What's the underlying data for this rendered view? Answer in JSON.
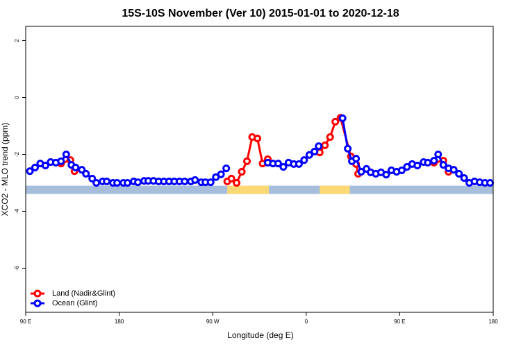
{
  "chart_data": {
    "type": "line",
    "title": "15S-10S November (Ver 10)   2015-01-01 to 2020-12-18",
    "xlabel": "Longitude (deg E)",
    "ylabel": "XCO2 - MLO trend (ppm)",
    "xlim": [
      90,
      540
    ],
    "ylim": [
      -7.55,
      2.5
    ],
    "xticks": [
      {
        "value": 90,
        "label": "90 E"
      },
      180,
      {
        "value": 270,
        "label": "90 W"
      },
      {
        "value": 360,
        "label": "0"
      },
      {
        "value": 450,
        "label": "90 E"
      },
      {
        "value": 540,
        "label": "180"
      }
    ],
    "yticks": [
      -6,
      -4,
      -2,
      0,
      2
    ],
    "legend": "bottom-left",
    "band": {
      "ylim": [
        -3.1,
        -3.39
      ],
      "ocean_color": "#a6bddb",
      "land_color": "#fdd976",
      "land_ranges": [
        [
          284,
          324
        ],
        [
          373,
          402
        ]
      ]
    },
    "series": [
      {
        "name": "Land (Nadir&Glint)",
        "color": "#ff0000",
        "x": [
          124,
          133,
          137,
          null,
          284,
          288,
          293,
          298,
          303,
          308,
          313,
          318,
          323,
          null,
          373,
          378,
          383,
          388,
          393,
          403,
          408,
          410,
          null,
          483,
          492,
          497
        ],
        "values": [
          -2.32,
          -2.2,
          -2.59,
          null,
          -2.95,
          -2.85,
          -3.0,
          -2.61,
          -2.24,
          -1.39,
          -1.44,
          -2.32,
          -2.17,
          null,
          -1.93,
          -1.68,
          -1.39,
          -0.85,
          -0.71,
          -2.07,
          -2.34,
          -2.68,
          null,
          -2.29,
          -2.22,
          -2.61
        ]
      },
      {
        "name": "Ocean (Glint)",
        "color": "#0000ff",
        "x": [
          94,
          99,
          104,
          109,
          114,
          119,
          124,
          129,
          134,
          138,
          144,
          148,
          154,
          158,
          164,
          168,
          174,
          178,
          184,
          188,
          194,
          198,
          204,
          208,
          213,
          218,
          223,
          228,
          233,
          238,
          243,
          249,
          253,
          259,
          263,
          268,
          273,
          278,
          283,
          null,
          323,
          328,
          333,
          338,
          343,
          348,
          353,
          358,
          363,
          368,
          372,
          null,
          395,
          400,
          404,
          408,
          413,
          418,
          422,
          427,
          432,
          437,
          442,
          447,
          452,
          457,
          462,
          467,
          473,
          477,
          483,
          487,
          492,
          497,
          502,
          507,
          512,
          517,
          522,
          527,
          532,
          537
        ],
        "values": [
          -2.59,
          -2.46,
          -2.32,
          -2.39,
          -2.27,
          -2.29,
          -2.24,
          -2.0,
          -2.37,
          -2.46,
          -2.54,
          -2.68,
          -2.85,
          -3.0,
          -2.95,
          -2.95,
          -3.0,
          -3.0,
          -3.0,
          -3.0,
          -2.95,
          -2.98,
          -2.93,
          -2.93,
          -2.93,
          -2.95,
          -2.95,
          -2.95,
          -2.95,
          -2.95,
          -2.95,
          -2.95,
          -2.9,
          -2.98,
          -2.98,
          -2.98,
          -2.8,
          -2.7,
          -2.49,
          null,
          -2.29,
          -2.32,
          -2.32,
          -2.44,
          -2.29,
          -2.34,
          -2.34,
          -2.2,
          -2.02,
          -1.9,
          -1.71,
          null,
          -0.73,
          -1.8,
          -2.24,
          -2.15,
          -2.61,
          -2.51,
          -2.63,
          -2.68,
          -2.63,
          -2.71,
          -2.56,
          -2.61,
          -2.56,
          -2.44,
          -2.34,
          -2.39,
          -2.27,
          -2.29,
          -2.22,
          -2.0,
          -2.37,
          -2.49,
          -2.54,
          -2.68,
          -2.83,
          -3.0,
          -2.95,
          -2.98,
          -3.0,
          -3.0
        ]
      }
    ]
  }
}
